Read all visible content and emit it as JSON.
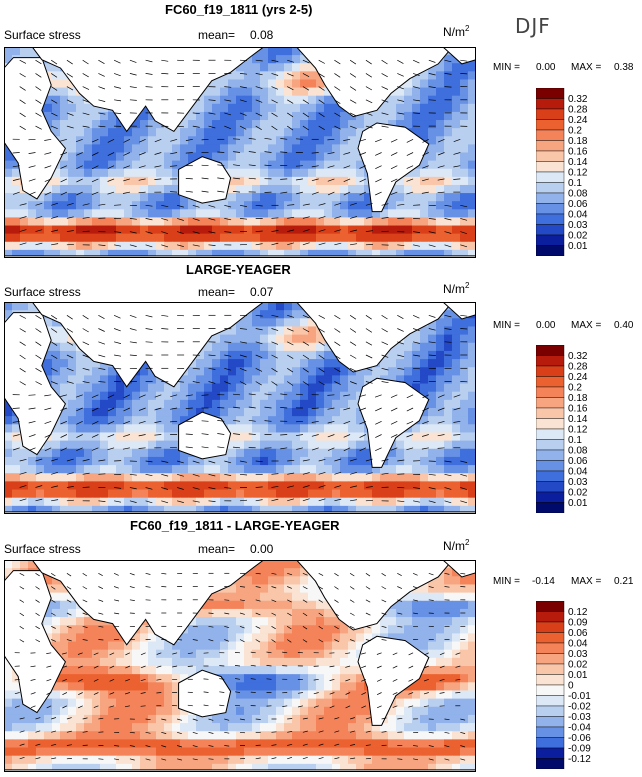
{
  "season": "DJF",
  "panels": [
    {
      "title": "FC60_f19_1811 (yrs 2-5)",
      "variable": "Surface stress",
      "mean_label": "mean=",
      "mean": "0.08",
      "units": "N/m",
      "units_exp": "2",
      "min_label": "MIN =",
      "min": "0.00",
      "max_label": "MAX =",
      "max": "0.38",
      "ticks": [
        "0.32",
        "0.28",
        "0.24",
        "0.2",
        "0.18",
        "0.16",
        "0.14",
        "0.12",
        "0.1",
        "0.08",
        "0.06",
        "0.04",
        "0.03",
        "0.02",
        "0.01"
      ],
      "colors": [
        "#7a0000",
        "#b71b0c",
        "#d9401a",
        "#ec6130",
        "#f4835a",
        "#f7a580",
        "#f9c6a9",
        "#fae3d2",
        "#dde8f6",
        "#b9cff0",
        "#91b2ea",
        "#6791e4",
        "#3f6fdc",
        "#2349c6",
        "#0b1f9e",
        "#000a6b"
      ]
    },
    {
      "title": "LARGE-YEAGER",
      "variable": "Surface stress",
      "mean_label": "mean=",
      "mean": "0.07",
      "units": "N/m",
      "units_exp": "2",
      "min_label": "MIN =",
      "min": "0.00",
      "max_label": "MAX =",
      "max": "0.40",
      "ticks": [
        "0.32",
        "0.28",
        "0.24",
        "0.2",
        "0.18",
        "0.16",
        "0.14",
        "0.12",
        "0.1",
        "0.08",
        "0.06",
        "0.04",
        "0.03",
        "0.02",
        "0.01"
      ],
      "colors": [
        "#7a0000",
        "#b71b0c",
        "#d9401a",
        "#ec6130",
        "#f4835a",
        "#f7a580",
        "#f9c6a9",
        "#fae3d2",
        "#dde8f6",
        "#b9cff0",
        "#91b2ea",
        "#6791e4",
        "#3f6fdc",
        "#2349c6",
        "#0b1f9e",
        "#000a6b"
      ]
    },
    {
      "title": "FC60_f19_1811 - LARGE-YEAGER",
      "variable": "Surface stress",
      "mean_label": "mean=",
      "mean": "0.00",
      "units": "N/m",
      "units_exp": "2",
      "min_label": "MIN =",
      "min": "-0.14",
      "max_label": "MAX =",
      "max": "0.21",
      "ticks": [
        "0.12",
        "0.09",
        "0.06",
        "0.04",
        "0.03",
        "0.02",
        "0.01",
        "0",
        "-0.01",
        "-0.02",
        "-0.03",
        "-0.04",
        "-0.06",
        "-0.09",
        "-0.12"
      ],
      "colors": [
        "#7a0000",
        "#b71b0c",
        "#d9401a",
        "#ec6130",
        "#f4835a",
        "#f7a580",
        "#f9c6a9",
        "#fae3d2",
        "#f7f7f7",
        "#dde8f6",
        "#b9cff0",
        "#91b2ea",
        "#6791e4",
        "#3f6fdc",
        "#0b1f9e",
        "#000a6b"
      ]
    }
  ],
  "chart_data": [
    {
      "type": "heatmap",
      "title": "FC60_f19_1811 (yrs 2-5)",
      "field": "Surface stress",
      "season": "DJF",
      "units": "N/m2",
      "mean": 0.08,
      "min": 0.0,
      "max": 0.38,
      "levels": [
        0.01,
        0.02,
        0.03,
        0.04,
        0.06,
        0.08,
        0.1,
        0.12,
        0.14,
        0.16,
        0.18,
        0.2,
        0.24,
        0.28,
        0.32
      ]
    },
    {
      "type": "heatmap",
      "title": "LARGE-YEAGER",
      "field": "Surface stress",
      "season": "DJF",
      "units": "N/m2",
      "mean": 0.07,
      "min": 0.0,
      "max": 0.4,
      "levels": [
        0.01,
        0.02,
        0.03,
        0.04,
        0.06,
        0.08,
        0.1,
        0.12,
        0.14,
        0.16,
        0.18,
        0.2,
        0.24,
        0.28,
        0.32
      ]
    },
    {
      "type": "heatmap",
      "title": "FC60_f19_1811 - LARGE-YEAGER",
      "field": "Surface stress",
      "season": "DJF",
      "units": "N/m2",
      "mean": 0.0,
      "min": -0.14,
      "max": 0.21,
      "levels": [
        -0.12,
        -0.09,
        -0.06,
        -0.04,
        -0.03,
        -0.02,
        -0.01,
        0,
        0.01,
        0.02,
        0.03,
        0.04,
        0.06,
        0.09,
        0.12
      ]
    }
  ]
}
